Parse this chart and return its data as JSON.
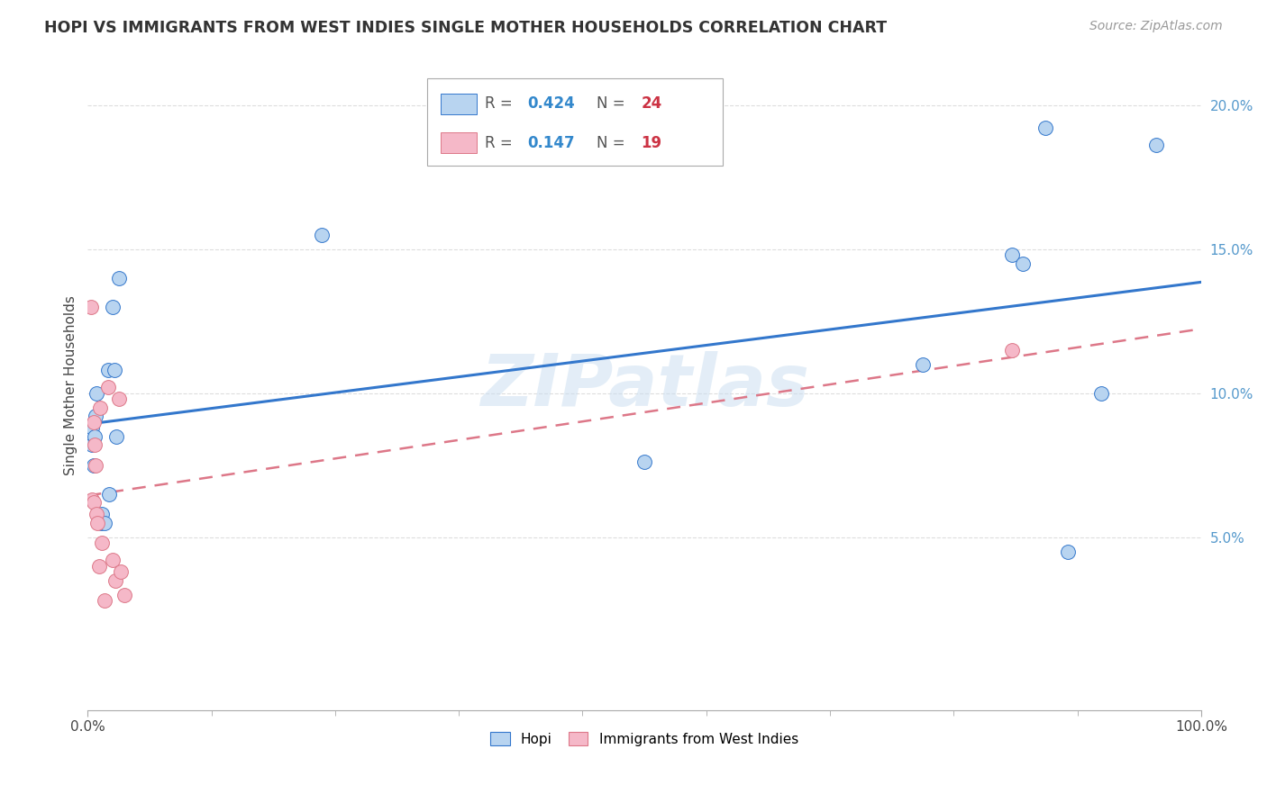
{
  "title": "HOPI VS IMMIGRANTS FROM WEST INDIES SINGLE MOTHER HOUSEHOLDS CORRELATION CHART",
  "source": "Source: ZipAtlas.com",
  "ylabel": "Single Mother Households",
  "x_min": 0.0,
  "x_max": 1.0,
  "y_min": -0.01,
  "y_max": 0.215,
  "y_ticks": [
    0.05,
    0.1,
    0.15,
    0.2
  ],
  "y_tick_labels": [
    "5.0%",
    "10.0%",
    "15.0%",
    "20.0%"
  ],
  "hopi_color": "#b8d4f0",
  "west_indies_color": "#f5b8c8",
  "hopi_line_color": "#3377cc",
  "west_indies_line_color": "#dd7788",
  "legend_hopi_r": "0.424",
  "legend_hopi_n": "24",
  "legend_wi_r": "0.147",
  "legend_wi_n": "19",
  "watermark": "ZIPatlas",
  "hopi_x": [
    0.004,
    0.004,
    0.005,
    0.006,
    0.007,
    0.008,
    0.012,
    0.013,
    0.015,
    0.018,
    0.019,
    0.022,
    0.024,
    0.026,
    0.028,
    0.21,
    0.5,
    0.75,
    0.83,
    0.84,
    0.86,
    0.88,
    0.91,
    0.96
  ],
  "hopi_y": [
    0.082,
    0.088,
    0.075,
    0.085,
    0.092,
    0.1,
    0.055,
    0.058,
    0.055,
    0.108,
    0.065,
    0.13,
    0.108,
    0.085,
    0.14,
    0.155,
    0.076,
    0.11,
    0.148,
    0.145,
    0.192,
    0.045,
    0.1,
    0.186
  ],
  "wi_x": [
    0.003,
    0.004,
    0.005,
    0.005,
    0.006,
    0.007,
    0.008,
    0.009,
    0.01,
    0.011,
    0.013,
    0.015,
    0.018,
    0.022,
    0.025,
    0.028,
    0.03,
    0.033,
    0.83
  ],
  "wi_y": [
    0.13,
    0.063,
    0.09,
    0.062,
    0.082,
    0.075,
    0.058,
    0.055,
    0.04,
    0.095,
    0.048,
    0.028,
    0.102,
    0.042,
    0.035,
    0.098,
    0.038,
    0.03,
    0.115
  ]
}
